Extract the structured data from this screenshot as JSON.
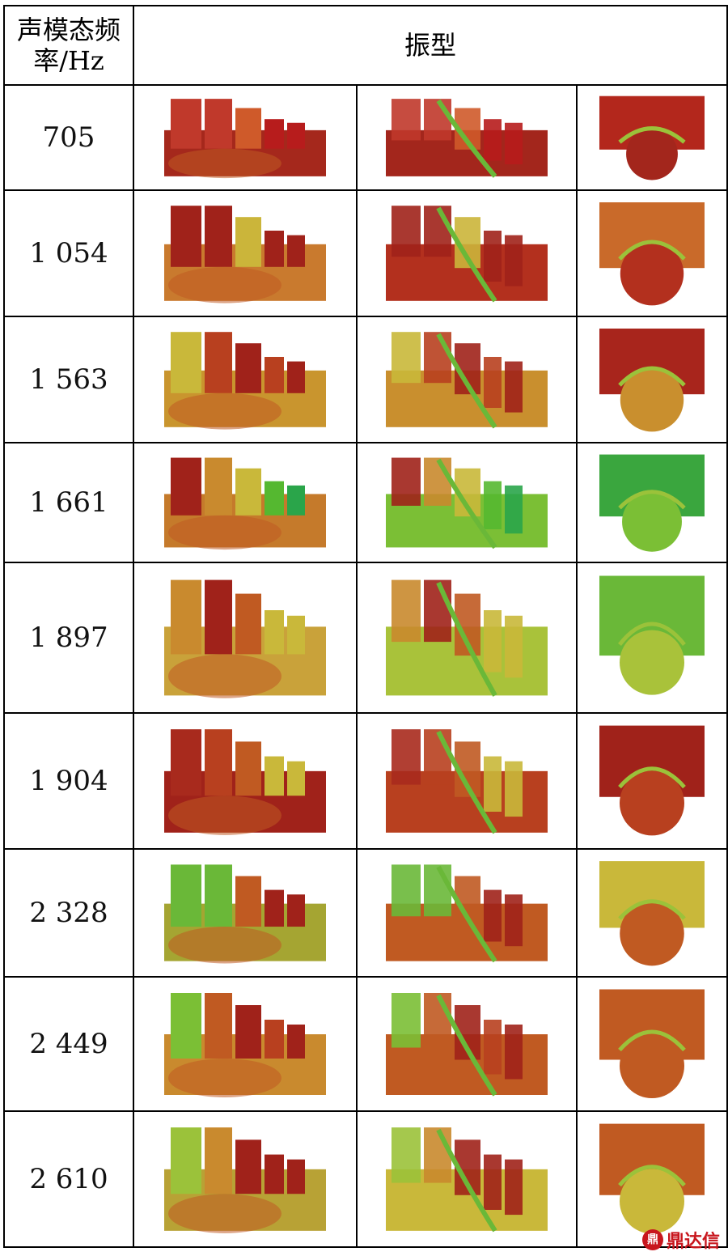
{
  "table": {
    "header_freq": "声模态频率/Hz",
    "header_shape": "振型"
  },
  "rows": [
    {
      "freq": "705",
      "view_a": [
        "#c0392b",
        "#c0392b",
        "#cf5a2a",
        "#b71c1c",
        "#b71c1c"
      ],
      "base_a": "#a5281c",
      "view_b": "#a3261c",
      "view_c": "#b3271c"
    },
    {
      "freq": "1 054",
      "view_a": [
        "#a0221a",
        "#a0221a",
        "#cbb53a",
        "#a0221a",
        "#a0221a"
      ],
      "base_a": "#c97a2e",
      "view_b": "#b3301e",
      "view_c": "#c96a2a"
    },
    {
      "freq": "1 563",
      "view_a": [
        "#c9b83a",
        "#b8401f",
        "#a0221a",
        "#b8401f",
        "#a0221a"
      ],
      "base_a": "#c9952e",
      "view_b": "#c98f2e",
      "view_c": "#a8251c"
    },
    {
      "freq": "1 661",
      "view_a": [
        "#a0221a",
        "#c98a2e",
        "#c9b83a",
        "#55b830",
        "#2aa54a"
      ],
      "base_a": "#c57a2b",
      "view_b": "#7bbf35",
      "view_c": "#3aa63e"
    },
    {
      "freq": "1 897",
      "view_a": [
        "#c98a2e",
        "#a0221a",
        "#c05a22",
        "#c9b83a",
        "#c9b83a"
      ],
      "base_a": "#c9a23a",
      "view_b": "#a9c23a",
      "view_c": "#6ab838"
    },
    {
      "freq": "1 904",
      "view_a": [
        "#a82a1d",
        "#b8401f",
        "#c05a22",
        "#c9b83a",
        "#c9b83a"
      ],
      "base_a": "#a0221a",
      "view_b": "#b8401f",
      "view_c": "#a0221a"
    },
    {
      "freq": "2 328",
      "view_a": [
        "#6ab838",
        "#6ab838",
        "#c05a22",
        "#a0221a",
        "#a0221a"
      ],
      "base_a": "#a5a532",
      "view_b": "#c05a22",
      "view_c": "#c9b83a"
    },
    {
      "freq": "2 449",
      "view_a": [
        "#7bbf35",
        "#c05a22",
        "#a0221a",
        "#b8401f",
        "#a0221a"
      ],
      "base_a": "#c98a2e",
      "view_b": "#c05a22",
      "view_c": "#c05a22"
    },
    {
      "freq": "2 610",
      "view_a": [
        "#9bc23a",
        "#c98a2e",
        "#a0221a",
        "#a0221a",
        "#a0221a"
      ],
      "base_a": "#b8a235",
      "view_b": "#c9b83a",
      "view_c": "#c05a22"
    }
  ],
  "watermark": {
    "logo": "鼎",
    "text": "鼎达信"
  }
}
